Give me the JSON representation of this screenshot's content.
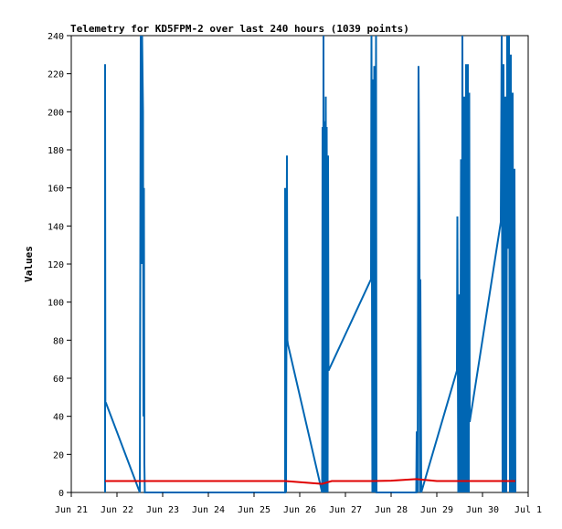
{
  "chart_data": {
    "type": "line",
    "title": "Telemetry for KD5FPM-2 over last 240 hours (1039 points)",
    "xlabel": "",
    "ylabel": "Values",
    "x_ticks": [
      "Jun 21",
      "Jun 22",
      "Jun 23",
      "Jun 24",
      "Jun 25",
      "Jun 26",
      "Jun 27",
      "Jun 28",
      "Jun 29",
      "Jun 30",
      "Jul 1"
    ],
    "y_ticks": [
      0,
      20,
      40,
      60,
      80,
      100,
      120,
      140,
      160,
      180,
      200,
      220,
      240
    ],
    "xlim": [
      0,
      10
    ],
    "ylim": [
      0,
      240
    ],
    "grid": false,
    "legend": "none",
    "series": [
      {
        "color": "#0066b3",
        "points": [
          [
            0.74,
            0
          ],
          [
            0.74,
            225
          ],
          [
            0.745,
            47
          ],
          [
            0.76,
            47
          ],
          [
            1.5,
            0
          ],
          [
            1.52,
            240
          ],
          [
            1.54,
            120
          ],
          [
            1.55,
            240
          ],
          [
            1.57,
            200
          ],
          [
            1.58,
            40
          ],
          [
            1.59,
            160
          ],
          [
            1.6,
            15
          ],
          [
            1.61,
            0
          ],
          [
            4.68,
            0
          ],
          [
            4.68,
            160
          ],
          [
            4.7,
            0
          ],
          [
            4.72,
            177
          ],
          [
            4.73,
            80
          ],
          [
            4.74,
            78
          ],
          [
            5.49,
            0
          ],
          [
            5.5,
            192
          ],
          [
            5.51,
            0
          ],
          [
            5.52,
            240
          ],
          [
            5.53,
            0
          ],
          [
            5.54,
            195
          ],
          [
            5.56,
            0
          ],
          [
            5.57,
            208
          ],
          [
            5.58,
            0
          ],
          [
            5.59,
            192
          ],
          [
            5.61,
            0
          ],
          [
            5.62,
            177
          ],
          [
            5.63,
            64
          ],
          [
            6.56,
            112
          ],
          [
            6.57,
            240
          ],
          [
            6.59,
            0
          ],
          [
            6.6,
            217
          ],
          [
            6.62,
            0
          ],
          [
            6.63,
            224
          ],
          [
            6.65,
            0
          ],
          [
            6.67,
            240
          ],
          [
            6.68,
            0
          ],
          [
            7.55,
            0
          ],
          [
            7.56,
            32
          ],
          [
            7.58,
            0
          ],
          [
            7.6,
            224
          ],
          [
            7.62,
            144
          ],
          [
            7.63,
            0
          ],
          [
            7.64,
            112
          ],
          [
            7.66,
            0
          ],
          [
            8.44,
            64
          ],
          [
            8.45,
            145
          ],
          [
            8.47,
            0
          ],
          [
            8.49,
            104
          ],
          [
            8.51,
            0
          ],
          [
            8.53,
            175
          ],
          [
            8.55,
            0
          ],
          [
            8.56,
            240
          ],
          [
            8.58,
            0
          ],
          [
            8.6,
            208
          ],
          [
            8.62,
            0
          ],
          [
            8.64,
            225
          ],
          [
            8.66,
            0
          ],
          [
            8.68,
            225
          ],
          [
            8.7,
            0
          ],
          [
            8.71,
            210
          ],
          [
            8.72,
            37
          ],
          [
            9.4,
            142
          ],
          [
            9.42,
            240
          ],
          [
            9.44,
            0
          ],
          [
            9.46,
            225
          ],
          [
            9.48,
            0
          ],
          [
            9.5,
            208
          ],
          [
            9.52,
            0
          ],
          [
            9.54,
            240
          ],
          [
            9.56,
            128
          ],
          [
            9.58,
            240
          ],
          [
            9.6,
            0
          ],
          [
            9.62,
            230
          ],
          [
            9.64,
            0
          ],
          [
            9.66,
            210
          ],
          [
            9.68,
            0
          ],
          [
            9.7,
            170
          ],
          [
            9.72,
            0
          ]
        ]
      },
      {
        "color": "#e00000",
        "points": [
          [
            0.74,
            6
          ],
          [
            1.5,
            6
          ],
          [
            2.5,
            6
          ],
          [
            3.5,
            6
          ],
          [
            4.68,
            6
          ],
          [
            5.49,
            4.5
          ],
          [
            5.7,
            6
          ],
          [
            6.6,
            6
          ],
          [
            7.0,
            6.2
          ],
          [
            7.55,
            7
          ],
          [
            8.0,
            6
          ],
          [
            9.0,
            6
          ],
          [
            9.72,
            6
          ]
        ]
      }
    ]
  }
}
